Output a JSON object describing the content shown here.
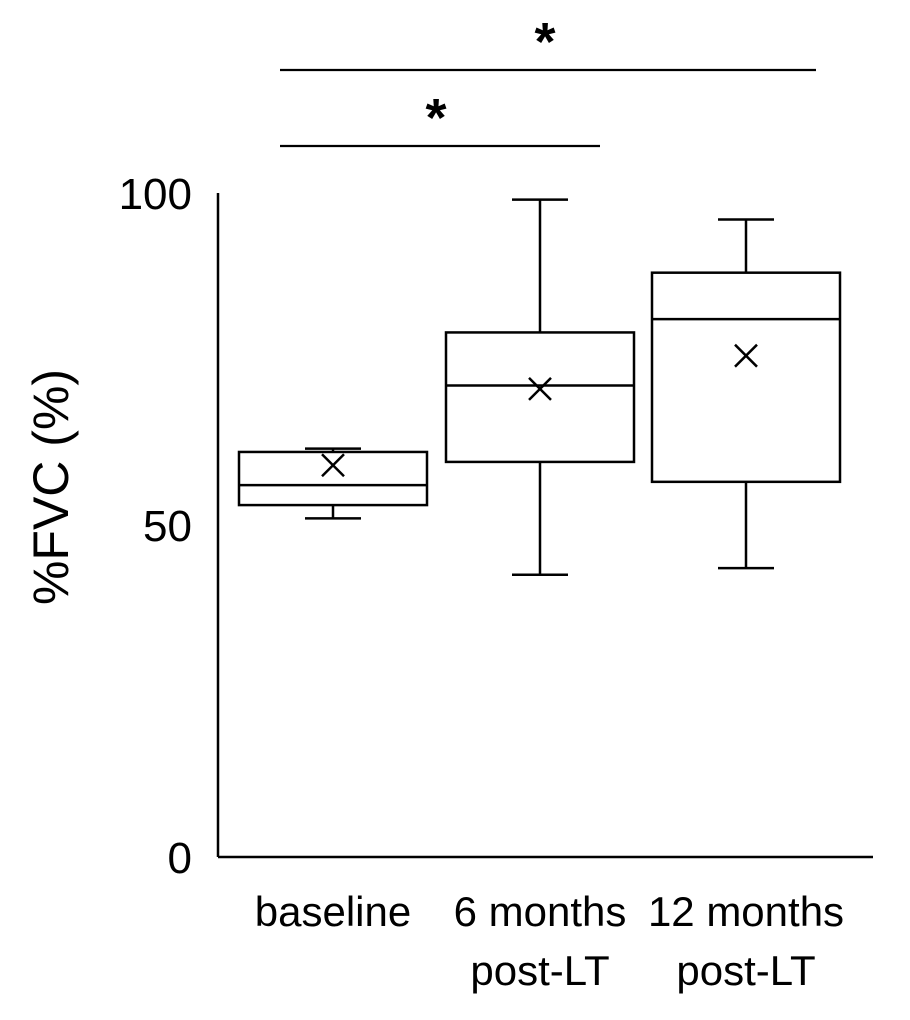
{
  "chart_data": {
    "type": "box",
    "ylabel": "%FVC (%)",
    "xlabel": "",
    "title": "",
    "ylim": [
      0,
      100
    ],
    "yticks": [
      0,
      50,
      100
    ],
    "categories": [
      [
        "baseline"
      ],
      [
        "6 months",
        "post-LT"
      ],
      [
        "12 months",
        "post-LT"
      ]
    ],
    "boxes": [
      {
        "whisker_low": 51,
        "q1": 53,
        "median": 56,
        "q3": 61,
        "whisker_high": 61.5,
        "mean": 59
      },
      {
        "whisker_low": 42.5,
        "q1": 59.5,
        "median": 71,
        "q3": 79,
        "whisker_high": 99,
        "mean": 70.5
      },
      {
        "whisker_low": 43.5,
        "q1": 56.5,
        "median": 81,
        "q3": 88,
        "whisker_high": 96,
        "mean": 75.5
      }
    ],
    "significance": [
      {
        "from": 0,
        "to": 2,
        "label": "*"
      },
      {
        "from": 0,
        "to": 1,
        "label": "*"
      }
    ],
    "colors": {
      "stroke": "#000000",
      "fill": "#ffffff"
    }
  }
}
